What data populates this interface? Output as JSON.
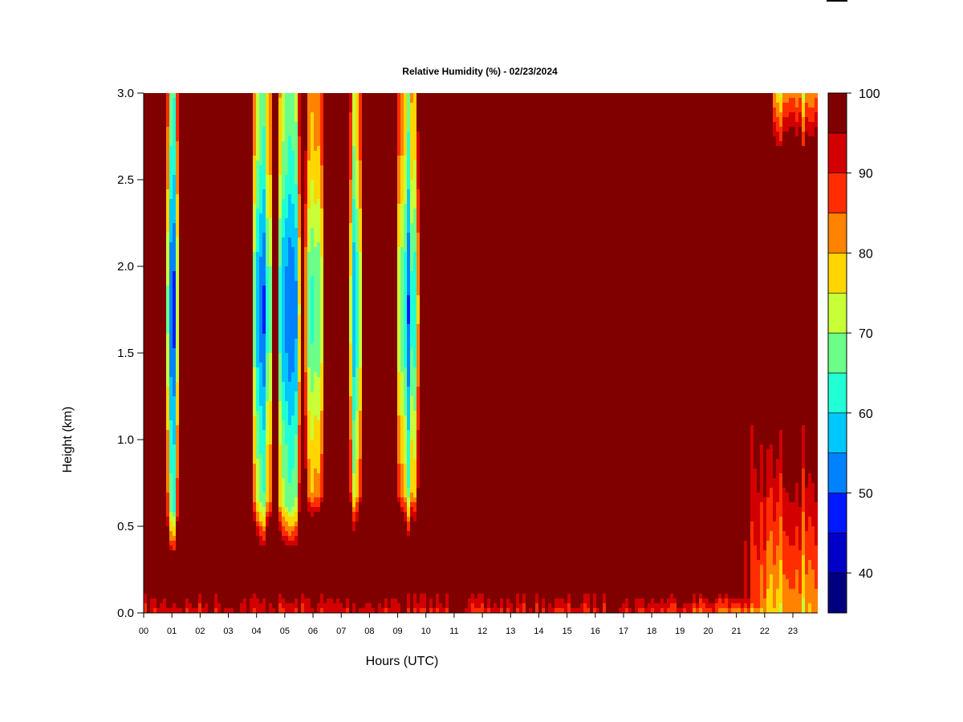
{
  "chart_data": {
    "type": "heatmap",
    "title": "Relative Humidity (%) - 02/23/2024",
    "xlabel": "Hours (UTC)",
    "ylabel": "Height (km)",
    "xlim": [
      0,
      24
    ],
    "ylim": [
      0.0,
      3.0
    ],
    "x_ticks": [
      "00",
      "01",
      "02",
      "03",
      "04",
      "05",
      "06",
      "07",
      "08",
      "09",
      "10",
      "11",
      "12",
      "13",
      "14",
      "15",
      "16",
      "17",
      "18",
      "19",
      "20",
      "21",
      "22",
      "23"
    ],
    "y_ticks": [
      "0.0",
      "0.5",
      "1.0",
      "1.5",
      "2.0",
      "2.5",
      "3.0"
    ],
    "colorbar": {
      "range": [
        35,
        100
      ],
      "ticks": [
        "40",
        "50",
        "60",
        "70",
        "80",
        "90",
        "100"
      ],
      "levels": [
        35,
        40,
        45,
        50,
        55,
        60,
        65,
        70,
        75,
        80,
        85,
        90,
        95,
        100
      ],
      "colors": [
        "#00007f",
        "#0000c8",
        "#0019ff",
        "#0082ff",
        "#00c8ff",
        "#21ffd4",
        "#6bff8a",
        "#c8ff37",
        "#ffd600",
        "#ff8200",
        "#ff2d00",
        "#d20000",
        "#800000"
      ]
    },
    "background_value": 98,
    "dry_columns": [
      {
        "x_start": 0.82,
        "x_end": 1.22,
        "y_bottom": 0.35,
        "min_rh": 45
      },
      {
        "x_start": 3.85,
        "x_end": 4.6,
        "y_bottom": 0.4,
        "min_rh": 52
      },
      {
        "x_start": 4.75,
        "x_end": 5.6,
        "y_bottom": 0.38,
        "min_rh": 50
      },
      {
        "x_start": 5.7,
        "x_end": 6.4,
        "y_bottom": 0.45,
        "min_rh": 60
      },
      {
        "x_start": 7.25,
        "x_end": 7.75,
        "y_bottom": 0.45,
        "min_rh": 55
      },
      {
        "x_start": 8.95,
        "x_end": 9.75,
        "y_bottom": 0.45,
        "min_rh": 55
      }
    ],
    "moist_features": [
      {
        "region": "surface layer",
        "x_start": 0,
        "x_end": 24,
        "y_top": 0.12,
        "min_rh": 75
      },
      {
        "region": "late-day boundary layer",
        "x_start": 21.0,
        "x_end": 24,
        "y_top": 1.1,
        "min_rh": 78
      },
      {
        "region": "upper patch",
        "x_start": 22.3,
        "x_end": 24,
        "y_bottom": 2.7,
        "min_rh": 78
      }
    ]
  }
}
